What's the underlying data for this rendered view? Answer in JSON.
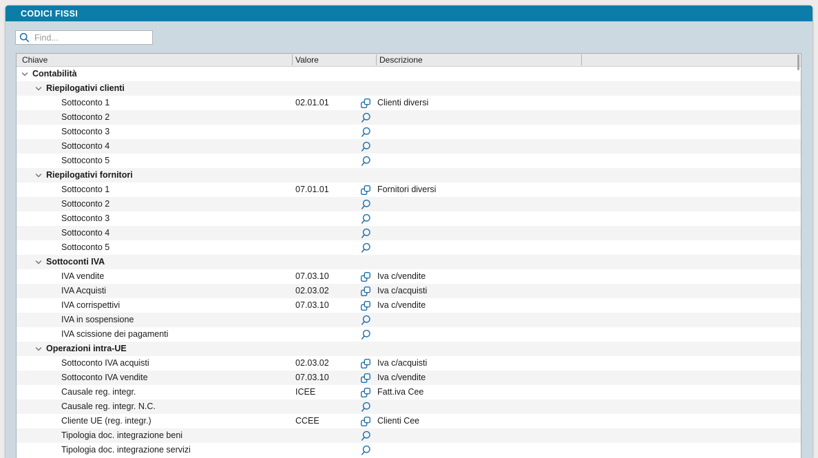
{
  "window": {
    "title": "CODICI FISSI"
  },
  "search": {
    "placeholder": "Find..."
  },
  "colors": {
    "titlebar": "#0C7CA8",
    "panel": "#CDD9E1",
    "icon_blue": "#1E6FA9",
    "row_alt": "#F4F4F4",
    "header_bg": "#E9E9E9"
  },
  "table": {
    "columns": [
      {
        "label": "Chiave"
      },
      {
        "label": "Valore"
      },
      {
        "label": "Descrizione"
      },
      {
        "label": ""
      }
    ],
    "rows": [
      {
        "key": "Contabilità",
        "depth": 0,
        "group": true,
        "expandable": true,
        "value": "",
        "icon": "",
        "description": ""
      },
      {
        "key": "Riepilogativi clienti",
        "depth": 1,
        "group": true,
        "expandable": true,
        "value": "",
        "icon": "",
        "description": ""
      },
      {
        "key": "Sottoconto 1",
        "depth": 2,
        "group": false,
        "expandable": false,
        "value": "02.01.01",
        "icon": "link",
        "description": "Clienti diversi"
      },
      {
        "key": "Sottoconto 2",
        "depth": 2,
        "group": false,
        "expandable": false,
        "value": "",
        "icon": "search",
        "description": ""
      },
      {
        "key": "Sottoconto 3",
        "depth": 2,
        "group": false,
        "expandable": false,
        "value": "",
        "icon": "search",
        "description": ""
      },
      {
        "key": "Sottoconto 4",
        "depth": 2,
        "group": false,
        "expandable": false,
        "value": "",
        "icon": "search",
        "description": ""
      },
      {
        "key": "Sottoconto 5",
        "depth": 2,
        "group": false,
        "expandable": false,
        "value": "",
        "icon": "search",
        "description": ""
      },
      {
        "key": "Riepilogativi fornitori",
        "depth": 1,
        "group": true,
        "expandable": true,
        "value": "",
        "icon": "",
        "description": ""
      },
      {
        "key": "Sottoconto 1",
        "depth": 2,
        "group": false,
        "expandable": false,
        "value": "07.01.01",
        "icon": "link",
        "description": "Fornitori diversi"
      },
      {
        "key": "Sottoconto 2",
        "depth": 2,
        "group": false,
        "expandable": false,
        "value": "",
        "icon": "search",
        "description": ""
      },
      {
        "key": "Sottoconto 3",
        "depth": 2,
        "group": false,
        "expandable": false,
        "value": "",
        "icon": "search",
        "description": ""
      },
      {
        "key": "Sottoconto 4",
        "depth": 2,
        "group": false,
        "expandable": false,
        "value": "",
        "icon": "search",
        "description": ""
      },
      {
        "key": "Sottoconto 5",
        "depth": 2,
        "group": false,
        "expandable": false,
        "value": "",
        "icon": "search",
        "description": ""
      },
      {
        "key": "Sottoconti IVA",
        "depth": 1,
        "group": true,
        "expandable": true,
        "value": "",
        "icon": "",
        "description": ""
      },
      {
        "key": "IVA vendite",
        "depth": 2,
        "group": false,
        "expandable": false,
        "value": "07.03.10",
        "icon": "link",
        "description": "Iva c/vendite"
      },
      {
        "key": "IVA Acquisti",
        "depth": 2,
        "group": false,
        "expandable": false,
        "value": "02.03.02",
        "icon": "link",
        "description": "Iva c/acquisti"
      },
      {
        "key": "IVA corrispettivi",
        "depth": 2,
        "group": false,
        "expandable": false,
        "value": "07.03.10",
        "icon": "link",
        "description": "Iva c/vendite"
      },
      {
        "key": "IVA in sospensione",
        "depth": 2,
        "group": false,
        "expandable": false,
        "value": "",
        "icon": "search",
        "description": ""
      },
      {
        "key": "IVA scissione dei pagamenti",
        "depth": 2,
        "group": false,
        "expandable": false,
        "value": "",
        "icon": "search",
        "description": ""
      },
      {
        "key": "Operazioni intra-UE",
        "depth": 1,
        "group": true,
        "expandable": true,
        "value": "",
        "icon": "",
        "description": ""
      },
      {
        "key": "Sottoconto IVA acquisti",
        "depth": 2,
        "group": false,
        "expandable": false,
        "value": "02.03.02",
        "icon": "link",
        "description": "Iva c/acquisti"
      },
      {
        "key": "Sottoconto IVA vendite",
        "depth": 2,
        "group": false,
        "expandable": false,
        "value": "07.03.10",
        "icon": "link",
        "description": "Iva c/vendite"
      },
      {
        "key": "Causale reg. integr.",
        "depth": 2,
        "group": false,
        "expandable": false,
        "value": "ICEE",
        "icon": "link",
        "description": "Fatt.iva Cee"
      },
      {
        "key": "Causale reg. integr. N.C.",
        "depth": 2,
        "group": false,
        "expandable": false,
        "value": "",
        "icon": "search",
        "description": ""
      },
      {
        "key": "Cliente UE (reg. integr.)",
        "depth": 2,
        "group": false,
        "expandable": false,
        "value": "CCEE",
        "icon": "link",
        "description": "Clienti Cee"
      },
      {
        "key": "Tipologia doc. integrazione beni",
        "depth": 2,
        "group": false,
        "expandable": false,
        "value": "",
        "icon": "search",
        "description": ""
      },
      {
        "key": "Tipologia doc. integrazione servizi",
        "depth": 2,
        "group": false,
        "expandable": false,
        "value": "",
        "icon": "search",
        "description": ""
      }
    ]
  }
}
